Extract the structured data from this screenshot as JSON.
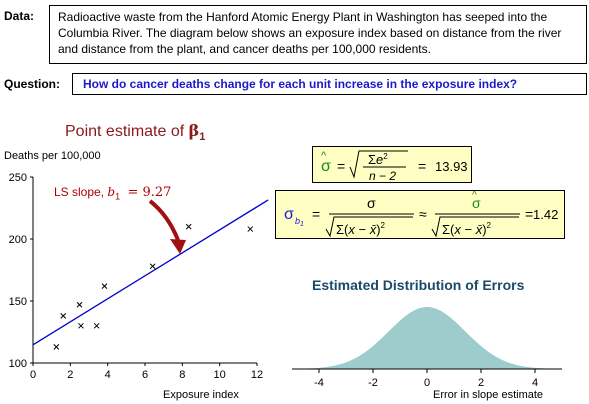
{
  "labels": {
    "data": "Data:",
    "question": "Question:"
  },
  "data_text": "Radioactive waste from the Hanford Atomic Energy Plant in Washington has seeped into the Columbia River. The diagram below shows an exposure index based on distance from the river and distance from the plant, and cancer deaths per 100,000 residents.",
  "question_text": "How  do cancer deaths change for each unit increase in the exposure index?",
  "point_estimate_title": "Point estimate of",
  "beta_symbol": "β",
  "beta_sub": "1",
  "ls_label": {
    "text": "LS slope,",
    "b": "b",
    "sub": "1",
    "value": "=  9.27"
  },
  "formulas": {
    "sigma_hat_value": "13.93",
    "sigma_b1_value": "1.42"
  },
  "colors": {
    "fit_line": "#0000cc",
    "arrow": "#a01010",
    "formula_bg": "#ffffc4",
    "density_fill": "#9ecccc"
  },
  "chart_data": [
    {
      "type": "scatter",
      "title": "",
      "ylabel": "Deaths per 100,000",
      "xlabel": "Exposure index",
      "xlim": [
        0,
        12
      ],
      "ylim": [
        100,
        250
      ],
      "xticks": [
        0,
        2,
        4,
        6,
        8,
        10,
        12
      ],
      "yticks": [
        100,
        150,
        200,
        250
      ],
      "points": [
        {
          "x": 1.25,
          "y": 113
        },
        {
          "x": 1.62,
          "y": 138
        },
        {
          "x": 2.49,
          "y": 147
        },
        {
          "x": 2.57,
          "y": 130
        },
        {
          "x": 3.41,
          "y": 130
        },
        {
          "x": 3.83,
          "y": 162
        },
        {
          "x": 6.41,
          "y": 178
        },
        {
          "x": 8.34,
          "y": 210
        },
        {
          "x": 11.64,
          "y": 208
        }
      ],
      "fit_line": {
        "intercept": 114.7,
        "slope": 9.27
      }
    },
    {
      "type": "area",
      "title": "Estimated Distribution of Errors",
      "xlabel": "Error in slope estimate",
      "ylabel": "",
      "xlim": [
        -5,
        5
      ],
      "xticks": [
        -4,
        -2,
        0,
        2,
        4
      ],
      "distribution": "normal",
      "mean": 0,
      "sd": 1.42
    }
  ]
}
